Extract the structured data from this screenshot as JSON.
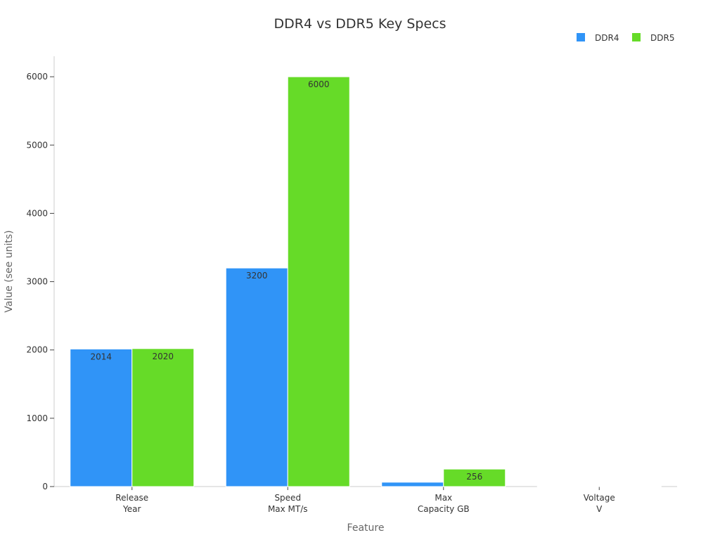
{
  "chart_data": {
    "type": "bar",
    "title": "DDR4 vs DDR5 Key Specs",
    "xlabel": "Feature",
    "ylabel": "Value (see units)",
    "categories": [
      [
        "Release",
        "Year"
      ],
      [
        "Speed",
        "Max MT/s"
      ],
      [
        "Max",
        "Capacity GB"
      ],
      [
        "Voltage",
        "V"
      ]
    ],
    "series": [
      {
        "name": "DDR4",
        "color": "#3094f7",
        "values": [
          2014,
          3200,
          64,
          1.2
        ],
        "labels": [
          "2014",
          "3200",
          "",
          ""
        ]
      },
      {
        "name": "DDR5",
        "color": "#66db28",
        "values": [
          2020,
          6000,
          256,
          1.1
        ],
        "labels": [
          "2020",
          "6000",
          "256",
          ""
        ]
      }
    ],
    "ylim": [
      0,
      6300
    ],
    "yticks": [
      0,
      1000,
      2000,
      3000,
      4000,
      5000,
      6000
    ],
    "grid": false,
    "legend": "top-right"
  }
}
